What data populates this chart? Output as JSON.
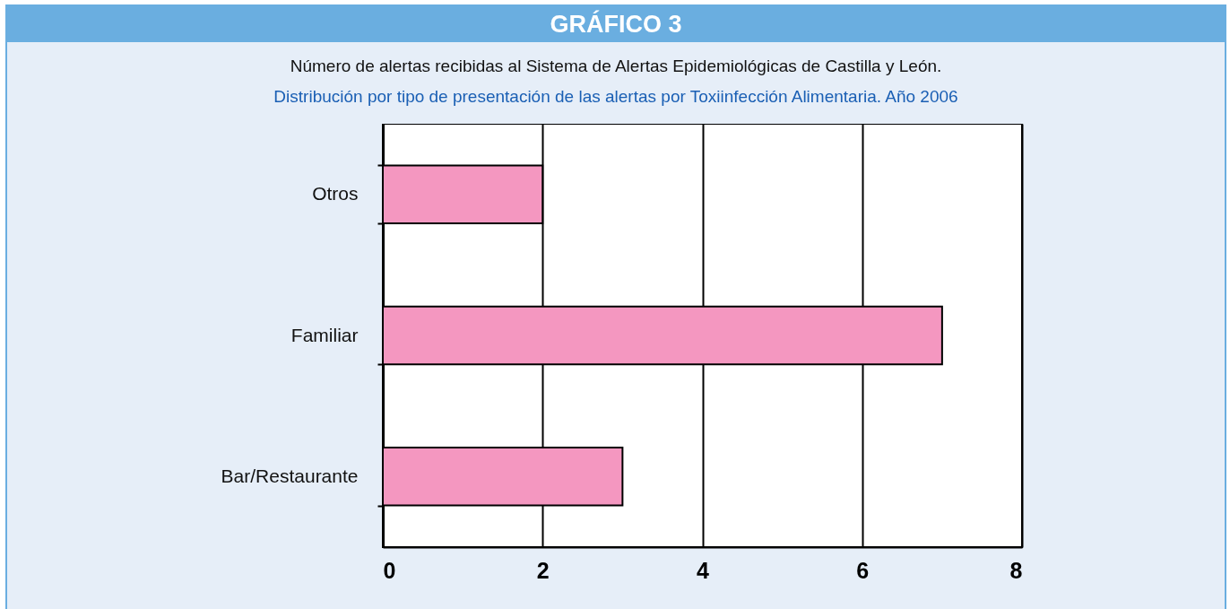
{
  "chart_data": {
    "type": "bar",
    "orientation": "horizontal",
    "title": "GRÁFICO 3",
    "subtitle": "Número de alertas recibidas al Sistema de Alertas Epidemiológicas de Castilla y León.",
    "annotations": [
      "Distribución por tipo de presentación de las alertas por Toxiinfección Alimentaria. Año 2006"
    ],
    "categories": [
      "Otros",
      "Familiar",
      "Bar/Restaurante"
    ],
    "values": [
      2,
      7,
      3
    ],
    "color": "#f497c0",
    "xlim": [
      0,
      8
    ],
    "xticks": [
      0,
      2,
      4,
      6,
      8
    ],
    "grid": "x"
  }
}
